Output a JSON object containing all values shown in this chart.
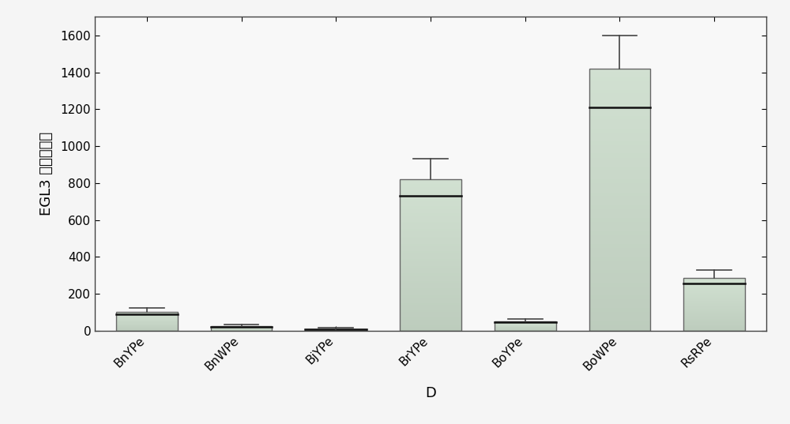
{
  "categories": [
    "BnYPe",
    "BnWPe",
    "BjYPe",
    "BrYPe",
    "BoYPe",
    "BoWPe",
    "RsRPe"
  ],
  "bar_heights": [
    100,
    25,
    10,
    820,
    50,
    1420,
    285
  ],
  "medians": [
    90,
    20,
    8,
    730,
    45,
    1210,
    255
  ],
  "error_tops": [
    122,
    35,
    18,
    930,
    62,
    1600,
    330
  ],
  "bar_color_face": "#c8d8c8",
  "bar_color_edge": "#666666",
  "median_color": "#111111",
  "error_color": "#444444",
  "ylabel": "EGL3 基因表达量",
  "xlabel": "D",
  "ylim": [
    0,
    1700
  ],
  "yticks": [
    0,
    200,
    400,
    600,
    800,
    1000,
    1200,
    1400,
    1600
  ],
  "ylabel_fontsize": 13,
  "xlabel_fontsize": 13,
  "tick_fontsize": 11,
  "bar_width": 0.65,
  "figsize": [
    10.0,
    5.37
  ],
  "dpi": 100,
  "background_color": "#f5f5f5",
  "plot_bg_color": "#f8f8f8",
  "grid": false
}
